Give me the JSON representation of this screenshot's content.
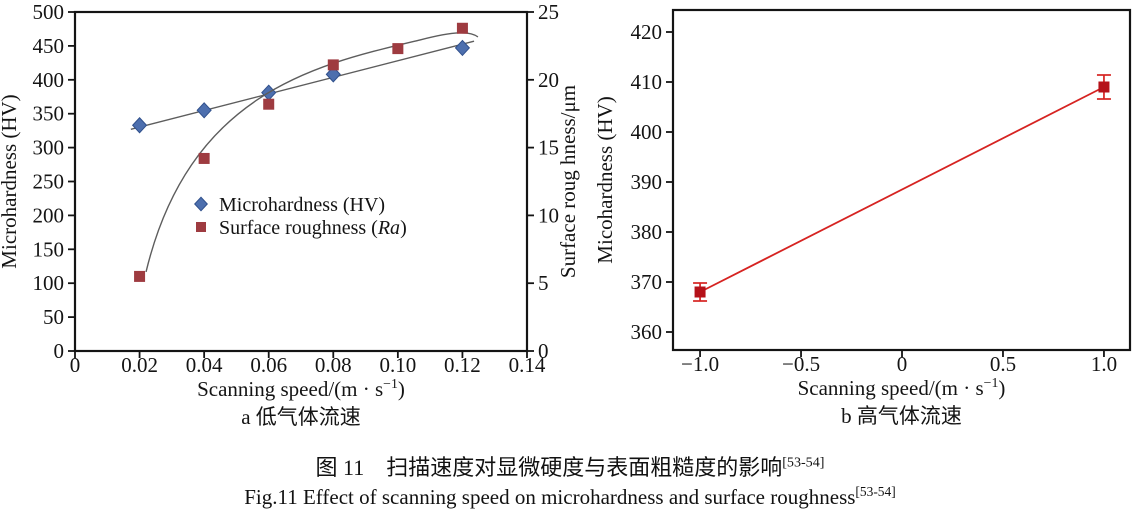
{
  "figure": {
    "caption_zh": "图 11　扫描速度对显微硬度与表面粗糙度的影响",
    "caption_zh_ref": "[53-54]",
    "caption_en": "Fig.11 Effect of scanning speed on microhardness and surface roughness",
    "caption_en_ref": "[53-54]"
  },
  "colors": {
    "axis": "#141414",
    "microhardness_blue": "#4d6fae",
    "microhardness_blue_edge": "#30508c",
    "roughness_dark_red": "#9e3b40",
    "trend_gray": "#5d5d5d",
    "chart_b_marker_red": "#b5121a",
    "chart_b_line_red": "#d62321"
  },
  "chart_data": [
    {
      "id": "a",
      "type": "scatter",
      "caption": "a  低气体流速",
      "xlabel_parts": [
        {
          "t": "Scanning speed/(m · s"
        },
        {
          "t": "−1",
          "sup": true
        },
        {
          "t": ")"
        }
      ],
      "xlim": [
        0,
        0.14
      ],
      "x_ticks": [
        [
          0,
          "0"
        ],
        [
          0.02,
          "0.02"
        ],
        [
          0.04,
          "0.04"
        ],
        [
          0.06,
          "0.06"
        ],
        [
          0.08,
          "0.08"
        ],
        [
          0.1,
          "0.10"
        ],
        [
          0.12,
          "0.12"
        ],
        [
          0.14,
          "0.14"
        ]
      ],
      "left_axis": {
        "label": "Microhardness (HV)",
        "lim": [
          0,
          500
        ],
        "ticks": [
          [
            0,
            "0"
          ],
          [
            50,
            "50"
          ],
          [
            100,
            "100"
          ],
          [
            150,
            "150"
          ],
          [
            200,
            "200"
          ],
          [
            250,
            "250"
          ],
          [
            300,
            "300"
          ],
          [
            350,
            "350"
          ],
          [
            400,
            "400"
          ],
          [
            450,
            "450"
          ],
          [
            500,
            "500"
          ]
        ]
      },
      "right_axis": {
        "label": "Surface roug hness/μm",
        "lim": [
          0,
          25
        ],
        "ticks": [
          [
            0,
            "0"
          ],
          [
            5,
            "5"
          ],
          [
            10,
            "10"
          ],
          [
            15,
            "15"
          ],
          [
            20,
            "20"
          ],
          [
            25,
            "25"
          ]
        ]
      },
      "legend": true,
      "series": [
        {
          "name_parts": [
            {
              "t": "Microhardness (HV)"
            }
          ],
          "marker": "diamond",
          "color": "#4d6fae",
          "edge": "#30508c",
          "axis": "left",
          "points": [
            [
              0.02,
              333
            ],
            [
              0.04,
              355
            ],
            [
              0.06,
              381
            ],
            [
              0.08,
              408
            ],
            [
              0.12,
              447
            ]
          ],
          "trend": {
            "kind": "line",
            "color": "#5d5d5d",
            "pts": [
              [
                0.0173,
                327
              ],
              [
                0.1236,
                457
              ]
            ]
          }
        },
        {
          "name_parts": [
            {
              "t": "Surface roughness ("
            },
            {
              "t": "Ra",
              "italic": true
            },
            {
              "t": ")"
            }
          ],
          "marker": "square",
          "color": "#9e3b40",
          "axis": "right",
          "points": [
            [
              0.02,
              5.5
            ],
            [
              0.04,
              14.2
            ],
            [
              0.06,
              18.2
            ],
            [
              0.08,
              21.1
            ],
            [
              0.1,
              22.3
            ],
            [
              0.12,
              23.8
            ]
          ],
          "trend": {
            "kind": "cubic",
            "color": "#5d5d5d",
            "pts": [
              [
                0.022,
                5.83
              ],
              [
                0.0356,
                19.25
              ],
              [
                0.0759,
                21.17
              ],
              [
                0.1069,
                22.94
              ],
              [
                0.1177,
                23.6
              ],
              [
                0.1224,
                23.6
              ],
              [
                0.1248,
                23.16
              ]
            ]
          }
        }
      ]
    },
    {
      "id": "b",
      "type": "scatter-errorbar",
      "caption": "b  高气体流速",
      "xlabel_parts": [
        {
          "t": "Scanning speed/(m · s"
        },
        {
          "t": "−1",
          "sup": true
        },
        {
          "t": ")"
        }
      ],
      "xlim": [
        -1.134,
        1.129
      ],
      "x_ticks": [
        [
          -1,
          "−1.0"
        ],
        [
          -0.5,
          "−0.5"
        ],
        [
          0,
          "0"
        ],
        [
          0.5,
          "0.5"
        ],
        [
          1,
          "1.0"
        ]
      ],
      "left_axis": {
        "label": "Micohardness (HV)",
        "lim": [
          356.4,
          424.4
        ],
        "ticks": [
          [
            360,
            "360"
          ],
          [
            370,
            "370"
          ],
          [
            380,
            "380"
          ],
          [
            390,
            "390"
          ],
          [
            400,
            "400"
          ],
          [
            410,
            "410"
          ],
          [
            420,
            "420"
          ]
        ]
      },
      "series": [
        {
          "marker": "square",
          "color": "#b5121a",
          "axis": "left",
          "points": [
            [
              -1,
              368
            ],
            [
              1,
              409
            ]
          ],
          "yerr": [
            1.8,
            2.4
          ],
          "err_color": "#d62321",
          "connect": "#d62321"
        }
      ]
    }
  ]
}
